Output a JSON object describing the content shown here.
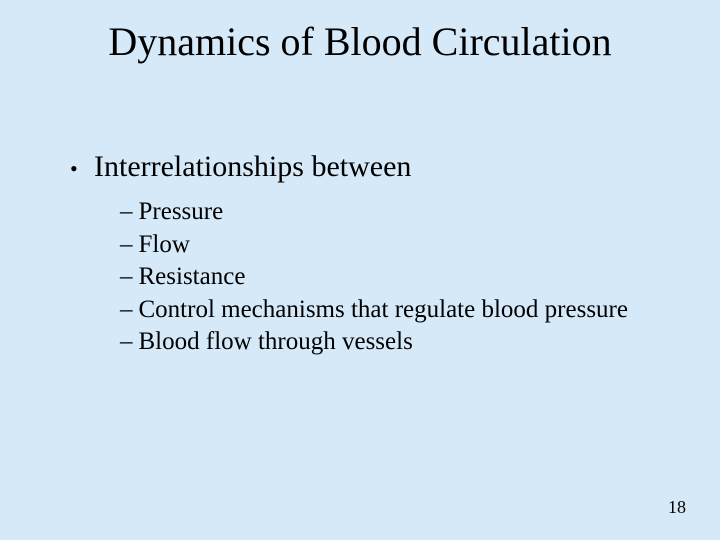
{
  "slide": {
    "background_color": "#d6e9f8",
    "text_color": "#000000",
    "font_family": "Times New Roman",
    "title": "Dynamics of Blood Circulation",
    "title_fontsize": 40,
    "bullet": {
      "marker": "•",
      "text": "Interrelationships between",
      "fontsize": 30
    },
    "sub_marker": "–",
    "sub_fontsize": 25,
    "sub_items": [
      "Pressure",
      "Flow",
      "Resistance",
      "Control mechanisms that regulate blood pressure",
      "Blood flow through vessels"
    ],
    "page_number": "18",
    "page_number_fontsize": 18
  }
}
